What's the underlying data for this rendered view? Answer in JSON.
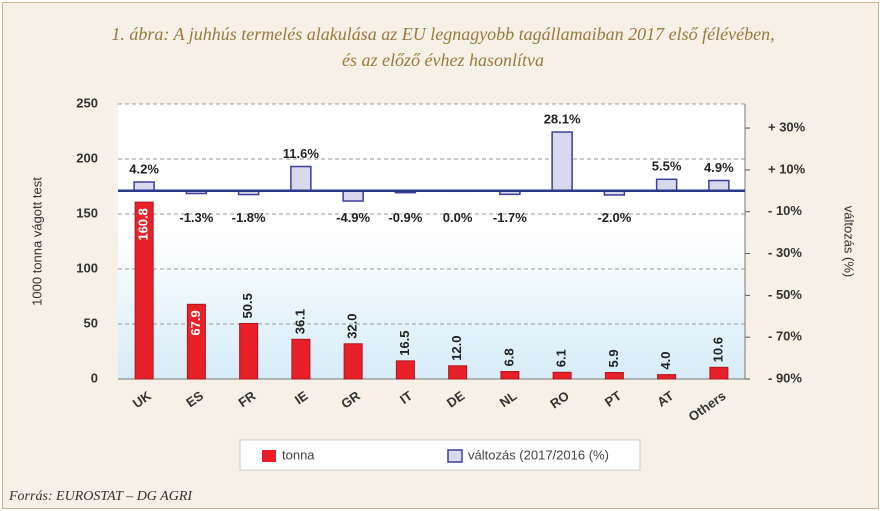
{
  "chart_data": {
    "type": "bar",
    "title": "1. ábra: A juhhús termelés alakulása az EU legnagyobb tagállamaiban 2017 első félévében, és az előző évhez hasonlítva",
    "ylabel": "1000 tonna vágott test",
    "y2label": "változás (%)",
    "source": "Forrás: EUROSTAT – DG AGRI",
    "categories": [
      "UK",
      "ES",
      "FR",
      "IE",
      "GR",
      "IT",
      "DE",
      "NL",
      "RO",
      "PT",
      "AT",
      "Others"
    ],
    "series": [
      {
        "name": "tonna",
        "color": "#e8202a",
        "values": [
          160.8,
          67.9,
          50.5,
          36.1,
          32.0,
          16.5,
          12.0,
          6.8,
          6.1,
          5.9,
          4.0,
          10.6
        ],
        "value_labels": [
          "160.8",
          "67.9",
          "50.5",
          "36.1",
          "32.0",
          "16.5",
          "12.0",
          "6.8",
          "6.1",
          "5.9",
          "4.0",
          "10.6"
        ]
      },
      {
        "name": "változás (2017/2016 (%)",
        "color": "#d9d9ee",
        "axis": "y2",
        "values": [
          4.2,
          -1.3,
          -1.8,
          11.6,
          -4.9,
          -0.9,
          0.0,
          -1.7,
          28.1,
          -2.0,
          5.5,
          4.9
        ],
        "value_labels": [
          "4.2%",
          "-1.3%",
          "-1.8%",
          "11.6%",
          "-4.9%",
          "-0.9%",
          "0.0%",
          "-1.7%",
          "28.1%",
          "-2.0%",
          "5.5%",
          "4.9%"
        ]
      }
    ],
    "ylim": [
      0,
      250
    ],
    "yticks": [
      0,
      50,
      100,
      150,
      200,
      250
    ],
    "y2lim": [
      -90,
      41.5
    ],
    "y2ticks": [
      {
        "value": 30,
        "label": "+ 30%"
      },
      {
        "value": 10,
        "label": "+ 10%"
      },
      {
        "value": -10,
        "label": "- 10%"
      },
      {
        "value": -30,
        "label": "- 30%"
      },
      {
        "value": -50,
        "label": "- 50%"
      },
      {
        "value": -70,
        "label": "- 70%"
      },
      {
        "value": -90,
        "label": "- 90%"
      }
    ],
    "grid": true
  }
}
